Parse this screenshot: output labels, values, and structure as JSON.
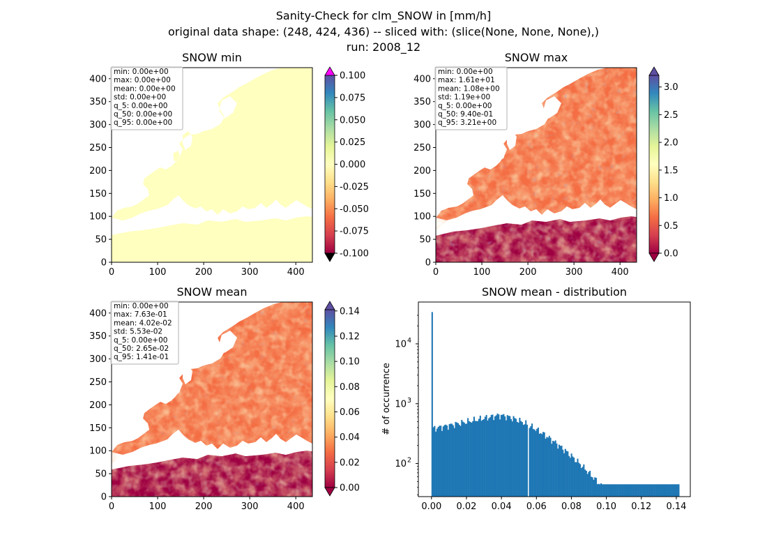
{
  "suptitle": {
    "line1": "Sanity-Check for clm_SNOW in [mm/h]",
    "line2": "original data shape: (248, 424, 436) -- sliced with: (slice(None, None, None),)",
    "line3": "run: 2008_12"
  },
  "colors": {
    "land_low": "#9e0142",
    "cmap_spectral": [
      "#9e0142",
      "#d53e4f",
      "#f46d43",
      "#fdae61",
      "#fee08b",
      "#ffffbf",
      "#e6f598",
      "#abdda4",
      "#66c2a5",
      "#3288bd",
      "#5e4fa2"
    ],
    "over_min": "#ff00ff",
    "under_min": "#000000",
    "hist_bar": "#1f77b4"
  },
  "chart_data": [
    {
      "type": "heatmap",
      "title": "SNOW min",
      "x_ticks": [
        "0",
        "100",
        "200",
        "300",
        "400"
      ],
      "y_ticks": [
        "0",
        "50",
        "100",
        "150",
        "200",
        "250",
        "300",
        "350",
        "400"
      ],
      "xlim": [
        0,
        436
      ],
      "ylim": [
        0,
        424
      ],
      "colorbar": {
        "ticks": [
          "-0.100",
          "-0.075",
          "-0.050",
          "-0.025",
          "0.000",
          "0.025",
          "0.050",
          "0.075",
          "0.100"
        ],
        "range": [
          -0.1,
          0.1
        ],
        "extend": "both"
      },
      "stats": [
        "min: 0.00e+00",
        "max: 0.00e+00",
        "mean: 0.00e+00",
        "std: 0.00e+00",
        "q_5: 0.00e+00",
        "q_50: 0.00e+00",
        "q_95: 0.00e+00"
      ]
    },
    {
      "type": "heatmap",
      "title": "SNOW max",
      "x_ticks": [
        "0",
        "100",
        "200",
        "300",
        "400"
      ],
      "y_ticks": [
        "0",
        "50",
        "100",
        "150",
        "200",
        "250",
        "300",
        "350",
        "400"
      ],
      "xlim": [
        0,
        436
      ],
      "ylim": [
        0,
        424
      ],
      "colorbar": {
        "ticks": [
          "0.0",
          "0.5",
          "1.0",
          "1.5",
          "2.0",
          "2.5",
          "3.0"
        ],
        "range": [
          0,
          3.21
        ],
        "extend": "both"
      },
      "stats": [
        "min: 0.00e+00",
        "max: 1.61e+01",
        "mean: 1.08e+00",
        "std: 1.19e+00",
        "q_5: 0.00e+00",
        "q_50: 9.40e-01",
        "q_95: 3.21e+00"
      ]
    },
    {
      "type": "heatmap",
      "title": "SNOW mean",
      "x_ticks": [
        "0",
        "100",
        "200",
        "300",
        "400"
      ],
      "y_ticks": [
        "0",
        "50",
        "100",
        "150",
        "200",
        "250",
        "300",
        "350",
        "400"
      ],
      "xlim": [
        0,
        436
      ],
      "ylim": [
        0,
        424
      ],
      "colorbar": {
        "ticks": [
          "0.00",
          "0.02",
          "0.04",
          "0.06",
          "0.08",
          "0.10",
          "0.12",
          "0.14"
        ],
        "range": [
          0,
          0.141
        ],
        "extend": "both"
      },
      "stats": [
        "min: 0.00e+00",
        "max: 7.63e-01",
        "mean: 4.02e-02",
        "std: 5.53e-02",
        "q_5: 0.00e+00",
        "q_50: 2.65e-02",
        "q_95: 1.41e-01"
      ]
    },
    {
      "type": "bar",
      "title": "SNOW mean - distribution",
      "ylabel": "# of occurrence",
      "x_ticks": [
        "0.00",
        "0.02",
        "0.04",
        "0.06",
        "0.08",
        "0.10",
        "0.12",
        "0.14"
      ],
      "xlim": [
        -0.0075,
        0.148
      ],
      "y_scale": "log",
      "y_ticks": [
        {
          "label": "10",
          "exp": "2",
          "value": 100
        },
        {
          "label": "10",
          "exp": "3",
          "value": 1000
        },
        {
          "label": "10",
          "exp": "4",
          "value": 10000
        }
      ],
      "ylim": [
        28,
        50000
      ],
      "bin_width": 0.000705,
      "bins_start": 0.0,
      "bins_end": 0.141,
      "first_bin_count": 34000,
      "gap_at": 0.0553
    }
  ]
}
